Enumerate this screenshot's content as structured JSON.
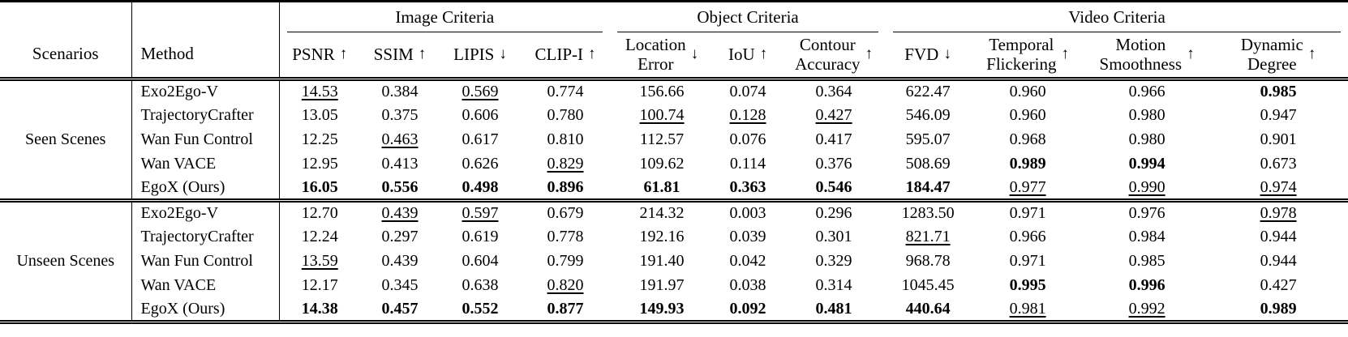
{
  "table": {
    "corner": {
      "scenarios": "Scenarios",
      "method": "Method"
    },
    "groups": [
      {
        "label": "Image Criteria",
        "span": 4
      },
      {
        "label": "Object Criteria",
        "span": 3
      },
      {
        "label": "Video Criteria",
        "span": 4
      }
    ],
    "columns": [
      {
        "line1": "PSNR",
        "line2": "",
        "arrow": "↑"
      },
      {
        "line1": "SSIM",
        "line2": "",
        "arrow": "↑"
      },
      {
        "line1": "LIPIS",
        "line2": "",
        "arrow": "↓"
      },
      {
        "line1": "CLIP-I",
        "line2": "",
        "arrow": "↑"
      },
      {
        "line1": "Location",
        "line2": "Error",
        "arrow": "↓"
      },
      {
        "line1": "IoU",
        "line2": "",
        "arrow": "↑"
      },
      {
        "line1": "Contour",
        "line2": "Accuracy",
        "arrow": "↑"
      },
      {
        "line1": "FVD",
        "line2": "",
        "arrow": "↓"
      },
      {
        "line1": "Temporal",
        "line2": "Flickering",
        "arrow": "↑"
      },
      {
        "line1": "Motion",
        "line2": "Smoothness",
        "arrow": "↑"
      },
      {
        "line1": "Dynamic",
        "line2": "Degree",
        "arrow": "↑"
      }
    ],
    "sections": [
      {
        "scenario": "Seen Scenes",
        "rows": [
          {
            "method": "Exo2Ego-V",
            "values": [
              "14.53",
              "0.384",
              "0.569",
              "0.774",
              "156.66",
              "0.074",
              "0.364",
              "622.47",
              "0.960",
              "0.966",
              "0.985"
            ],
            "styles": [
              "u",
              "",
              "u",
              "",
              "",
              "",
              "",
              "",
              "",
              "",
              "b"
            ]
          },
          {
            "method": "TrajectoryCrafter",
            "values": [
              "13.05",
              "0.375",
              "0.606",
              "0.780",
              "100.74",
              "0.128",
              "0.427",
              "546.09",
              "0.960",
              "0.980",
              "0.947"
            ],
            "styles": [
              "",
              "",
              "",
              "",
              "u",
              "u",
              "u",
              "",
              "",
              "",
              ""
            ]
          },
          {
            "method": "Wan Fun Control",
            "values": [
              "12.25",
              "0.463",
              "0.617",
              "0.810",
              "112.57",
              "0.076",
              "0.417",
              "595.07",
              "0.968",
              "0.980",
              "0.901"
            ],
            "styles": [
              "",
              "u",
              "",
              "",
              "",
              "",
              "",
              "",
              "",
              "",
              ""
            ]
          },
          {
            "method": "Wan VACE",
            "values": [
              "12.95",
              "0.413",
              "0.626",
              "0.829",
              "109.62",
              "0.114",
              "0.376",
              "508.69",
              "0.989",
              "0.994",
              "0.673"
            ],
            "styles": [
              "",
              "",
              "",
              "u",
              "",
              "",
              "",
              "",
              "b",
              "b",
              ""
            ]
          },
          {
            "method": "EgoX (Ours)",
            "values": [
              "16.05",
              "0.556",
              "0.498",
              "0.896",
              "61.81",
              "0.363",
              "0.546",
              "184.47",
              "0.977",
              "0.990",
              "0.974"
            ],
            "styles": [
              "b",
              "b",
              "b",
              "b",
              "b",
              "b",
              "b",
              "b",
              "u",
              "u",
              "u"
            ]
          }
        ]
      },
      {
        "scenario": "Unseen Scenes",
        "rows": [
          {
            "method": "Exo2Ego-V",
            "values": [
              "12.70",
              "0.439",
              "0.597",
              "0.679",
              "214.32",
              "0.003",
              "0.296",
              "1283.50",
              "0.971",
              "0.976",
              "0.978"
            ],
            "styles": [
              "",
              "u",
              "u",
              "",
              "",
              "",
              "",
              "",
              "",
              "",
              "u"
            ]
          },
          {
            "method": "TrajectoryCrafter",
            "values": [
              "12.24",
              "0.297",
              "0.619",
              "0.778",
              "192.16",
              "0.039",
              "0.301",
              "821.71",
              "0.966",
              "0.984",
              "0.944"
            ],
            "styles": [
              "",
              "",
              "",
              "",
              "",
              "",
              "",
              "u",
              "",
              "",
              ""
            ]
          },
          {
            "method": "Wan Fun Control",
            "values": [
              "13.59",
              "0.439",
              "0.604",
              "0.799",
              "191.40",
              "0.042",
              "0.329",
              "968.78",
              "0.971",
              "0.985",
              "0.944"
            ],
            "styles": [
              "u",
              "",
              "",
              "",
              "",
              "",
              "",
              "",
              "",
              "",
              ""
            ]
          },
          {
            "method": "Wan VACE",
            "values": [
              "12.17",
              "0.345",
              "0.638",
              "0.820",
              "191.97",
              "0.038",
              "0.314",
              "1045.45",
              "0.995",
              "0.996",
              "0.427"
            ],
            "styles": [
              "",
              "",
              "",
              "u",
              "",
              "",
              "",
              "",
              "b",
              "b",
              ""
            ]
          },
          {
            "method": "EgoX (Ours)",
            "values": [
              "14.38",
              "0.457",
              "0.552",
              "0.877",
              "149.93",
              "0.092",
              "0.481",
              "440.64",
              "0.981",
              "0.992",
              "0.989"
            ],
            "styles": [
              "b",
              "b",
              "b",
              "b",
              "b",
              "b",
              "b",
              "b",
              "u",
              "u",
              "b"
            ]
          }
        ]
      }
    ]
  }
}
